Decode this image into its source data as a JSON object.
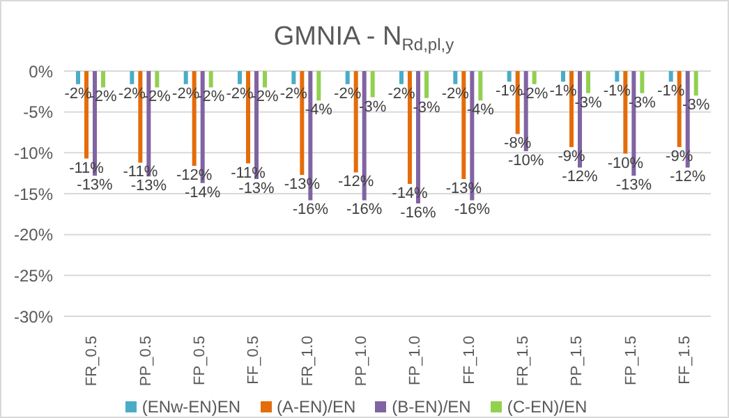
{
  "chart_data": {
    "type": "bar",
    "title": "GMNIA - N$_{Rd,pl,y}$",
    "categories": [
      "FR_0.5",
      "PP_0.5",
      "FP_0.5",
      "FF_0.5",
      "FR_1.0",
      "PP_1.0",
      "FP_1.0",
      "FF_1.0",
      "FR_1.5",
      "PP_1.5",
      "FP_1.5",
      "FF_1.5"
    ],
    "series": [
      {
        "name": "(ENw-EN)EN",
        "color": "#4bacc6",
        "values": [
          -1.6,
          -1.6,
          -1.6,
          -1.6,
          -1.6,
          -1.6,
          -1.6,
          -1.6,
          -1.3,
          -1.3,
          -1.3,
          -1.3
        ],
        "value_labels": [
          "-2%",
          "-2%",
          "-2%",
          "-2%",
          "-2%",
          "-2%",
          "-2%",
          "-2%",
          "-1%",
          "-1%",
          "-1%",
          "-1%"
        ]
      },
      {
        "name": "(A-EN)/EN",
        "color": "#e46c0a",
        "values": [
          -10.7,
          -11.2,
          -11.6,
          -11.3,
          -12.7,
          -12.4,
          -13.8,
          -13.2,
          -7.7,
          -9.3,
          -10.1,
          -9.3
        ],
        "value_labels": [
          "-11%",
          "-11%",
          "-12%",
          "-11%",
          "-13%",
          "-12%",
          "-14%",
          "-13%",
          "-8%",
          "-9%",
          "-10%",
          "-9%"
        ]
      },
      {
        "name": "(B-EN)/EN",
        "color": "#8064a2",
        "values": [
          -12.8,
          -12.9,
          -13.7,
          -13.2,
          -15.8,
          -15.8,
          -16.2,
          -15.8,
          -9.8,
          -11.8,
          -12.8,
          -11.8
        ],
        "value_labels": [
          "-13%",
          "-13%",
          "-14%",
          "-13%",
          "-16%",
          "-16%",
          "-16%",
          "-16%",
          "-10%",
          "-12%",
          "-13%",
          "-12%"
        ]
      },
      {
        "name": "(C-EN)/EN",
        "color": "#92d050",
        "values": [
          -2,
          -2,
          -2,
          -2,
          -3.6,
          -3.2,
          -3.3,
          -3.6,
          -1.6,
          -2.7,
          -2.7,
          -3
        ],
        "value_labels": [
          "-2%",
          "-2%",
          "-2%",
          "-2%",
          "-4%",
          "-3%",
          "-3%",
          "-4%",
          "-2%",
          "-3%",
          "-3%",
          "-3%"
        ]
      }
    ],
    "ylim": [
      -30,
      0
    ],
    "yticks": [
      {
        "value": 0,
        "label": "0%"
      },
      {
        "value": -5,
        "label": "-5%"
      },
      {
        "value": -10,
        "label": "-10%"
      },
      {
        "value": -15,
        "label": "-15%"
      },
      {
        "value": -20,
        "label": "-20%"
      },
      {
        "value": -25,
        "label": "-25%"
      },
      {
        "value": -30,
        "label": "-30%"
      }
    ],
    "grid": "y",
    "legend": "bottom"
  }
}
